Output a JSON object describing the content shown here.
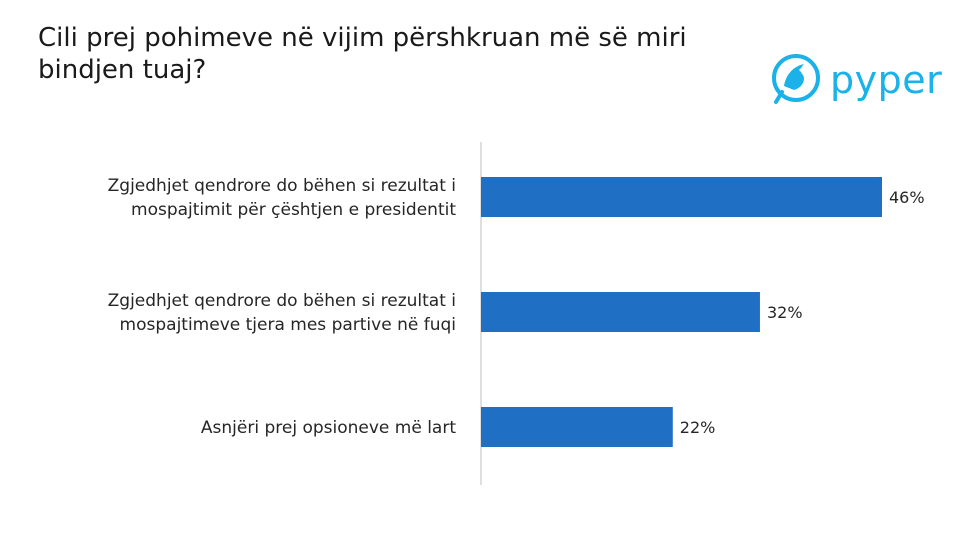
{
  "question": "Cili prej pohimeve në vijim përshkruan më së miri bindjen tuaj?",
  "brand": {
    "name": "pyper",
    "color": "#1ab2e8",
    "icon": "bird-logo-icon"
  },
  "chart_data": {
    "type": "bar",
    "orientation": "horizontal",
    "title": "",
    "categories": [
      [
        "Zgjedhjet qendrore do bëhen si rezultat i",
        "mospajtimit për çështjen e presidentit"
      ],
      [
        "Zgjedhjet qendrore do bëhen si rezultat i",
        "mospajtimeve tjera mes partive në fuqi"
      ],
      [
        "Asnjëri prej opsioneve më lart"
      ]
    ],
    "values": [
      46,
      32,
      22
    ],
    "value_labels": [
      "46%",
      "32%",
      "22%"
    ],
    "unit": "%",
    "bar_color": "#1f6fc5",
    "axis_color": "#bfbfbf",
    "xlim": [
      0,
      46
    ],
    "grid": false,
    "legend": "none"
  }
}
